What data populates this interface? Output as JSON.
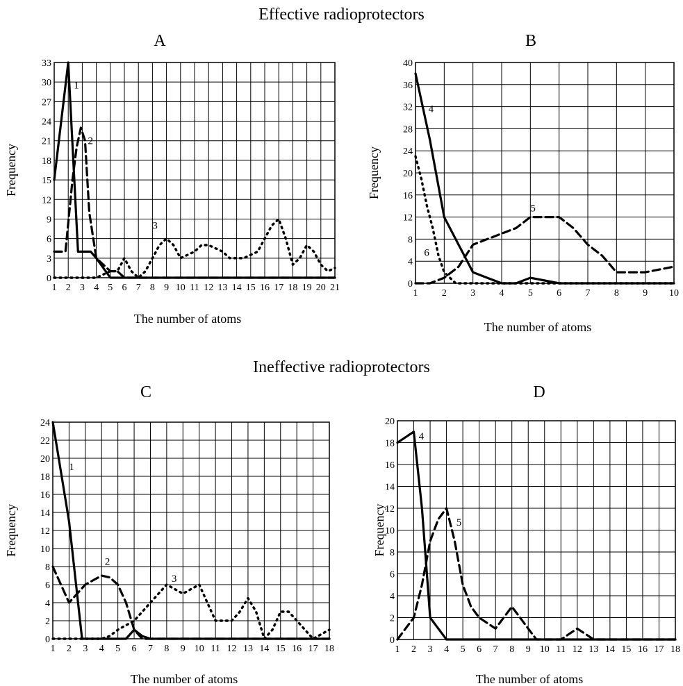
{
  "section_titles": {
    "effective": "Effective radioprotectors",
    "ineffective": "Ineffective  radioprotectors"
  },
  "chart_data": [
    {
      "panel": "A",
      "type": "line",
      "xlabel": "The number of atoms",
      "ylabel": "Frequency",
      "xlim": [
        1,
        21
      ],
      "ylim": [
        0,
        33
      ],
      "xticks": [
        1,
        2,
        3,
        4,
        5,
        6,
        7,
        8,
        9,
        10,
        11,
        12,
        13,
        14,
        15,
        16,
        17,
        18,
        19,
        20,
        21
      ],
      "yticks": [
        0,
        3,
        6,
        9,
        12,
        15,
        18,
        21,
        24,
        27,
        30,
        33
      ],
      "grid": true,
      "series": [
        {
          "name": "1",
          "style": "solid",
          "x": [
            1,
            2,
            2.7,
            3.6,
            4,
            5,
            6,
            7,
            8,
            9,
            10,
            11,
            12,
            13,
            14,
            15,
            16,
            17,
            18,
            19,
            20,
            21
          ],
          "y": [
            15,
            33,
            4,
            4,
            3,
            0,
            0,
            0,
            0,
            0,
            0,
            0,
            0,
            0,
            0,
            0,
            0,
            0,
            0,
            0,
            0,
            0
          ]
        },
        {
          "name": "2",
          "style": "dashed",
          "x": [
            1,
            1.8,
            2.3,
            2.6,
            2.9,
            3.2,
            3.5,
            4,
            4.5,
            5,
            5.5,
            6,
            6.5,
            7,
            8,
            9,
            10,
            11,
            12,
            13,
            14,
            15,
            16,
            17,
            18,
            19,
            20,
            21
          ],
          "y": [
            4,
            4,
            15,
            20,
            23,
            21,
            10,
            3,
            2,
            1,
            1,
            0,
            0,
            0,
            0,
            0,
            0,
            0,
            0,
            0,
            0,
            0,
            0,
            0,
            0,
            0,
            0,
            0
          ]
        },
        {
          "name": "3",
          "style": "dotted",
          "x": [
            1,
            2,
            3,
            4,
            5,
            5.5,
            6,
            6.5,
            7,
            7.5,
            8,
            8.5,
            9,
            9.5,
            10,
            10.5,
            11,
            11.5,
            12,
            12.5,
            13,
            13.5,
            14,
            14.5,
            15,
            15.5,
            16,
            16.5,
            17,
            17.5,
            18,
            18.5,
            19,
            19.5,
            20,
            20.5,
            21
          ],
          "y": [
            0,
            0,
            0,
            0,
            1,
            1,
            3,
            1,
            0,
            1,
            3,
            5,
            6,
            5,
            3,
            3.5,
            4,
            5,
            5,
            4.5,
            4,
            3,
            3,
            3,
            3.5,
            4,
            6,
            8,
            9,
            6,
            2,
            3,
            5,
            4,
            2,
            1,
            1.5
          ]
        }
      ]
    },
    {
      "panel": "B",
      "type": "line",
      "xlabel": "The number of atoms",
      "ylabel": "Frequency",
      "xlim": [
        1,
        10
      ],
      "ylim": [
        0,
        40
      ],
      "xticks": [
        1,
        2,
        3,
        4,
        5,
        6,
        7,
        8,
        9,
        10
      ],
      "yticks": [
        0,
        4,
        8,
        12,
        16,
        20,
        24,
        28,
        32,
        36,
        40
      ],
      "grid": true,
      "series": [
        {
          "name": "4",
          "style": "solid",
          "x": [
            1,
            1.5,
            2,
            2.5,
            3,
            3.5,
            4,
            4.5,
            5,
            5.5,
            6,
            7,
            8,
            9,
            10
          ],
          "y": [
            38,
            26,
            12,
            7,
            2,
            1,
            0,
            0,
            1,
            0.5,
            0,
            0,
            0,
            0,
            0
          ]
        },
        {
          "name": "5",
          "style": "dashed",
          "x": [
            1,
            1.5,
            2,
            2.5,
            3,
            3.5,
            4,
            4.5,
            5,
            5.5,
            6,
            6.5,
            7,
            7.5,
            8,
            8.5,
            9,
            9.5,
            10
          ],
          "y": [
            0,
            0,
            1,
            3,
            7,
            8,
            9,
            10,
            12,
            12,
            12,
            10,
            7,
            5,
            2,
            2,
            2,
            2.5,
            3
          ]
        },
        {
          "name": "6",
          "style": "dotted",
          "x": [
            1,
            1.2,
            1.4,
            1.6,
            1.8,
            2,
            2.2,
            2.4,
            3,
            4,
            5,
            6,
            7,
            8,
            9,
            10
          ],
          "y": [
            23,
            19,
            14,
            10,
            5,
            2,
            1,
            0,
            0,
            0,
            0,
            0,
            0,
            0,
            0,
            0
          ]
        }
      ]
    },
    {
      "panel": "C",
      "type": "line",
      "xlabel": "The number of atoms",
      "ylabel": "Frequency",
      "xlim": [
        1,
        18
      ],
      "ylim": [
        0,
        24
      ],
      "xticks": [
        1,
        2,
        3,
        4,
        5,
        6,
        7,
        8,
        9,
        10,
        11,
        12,
        13,
        14,
        15,
        16,
        17,
        18
      ],
      "yticks": [
        0,
        2,
        4,
        6,
        8,
        10,
        12,
        14,
        16,
        18,
        20,
        22,
        24
      ],
      "grid": true,
      "series": [
        {
          "name": "1",
          "style": "solid",
          "x": [
            1,
            2,
            2.8,
            3,
            4,
            5,
            5.5,
            6,
            6.5,
            7,
            8,
            9,
            10,
            11,
            12,
            13,
            14,
            15,
            16,
            17,
            18
          ],
          "y": [
            24,
            13,
            0,
            0,
            0,
            0,
            0,
            1,
            0.3,
            0,
            0,
            0,
            0,
            0,
            0,
            0,
            0,
            0,
            0,
            0,
            0
          ]
        },
        {
          "name": "2",
          "style": "dashed",
          "x": [
            1,
            1.5,
            2,
            2.5,
            3,
            3.5,
            4,
            4.5,
            5,
            5.5,
            6,
            6.5,
            7,
            8,
            9,
            10,
            11,
            12,
            13,
            14,
            15,
            16,
            17,
            18
          ],
          "y": [
            8,
            6,
            4,
            5,
            6,
            6.5,
            7,
            6.8,
            6,
            4,
            1,
            0,
            0,
            0,
            0,
            0,
            0,
            0,
            0,
            0,
            0,
            0,
            0,
            0
          ]
        },
        {
          "name": "3",
          "style": "dotted",
          "x": [
            1,
            2,
            3,
            4,
            4.5,
            5,
            5.5,
            6,
            6.5,
            7,
            7.5,
            8,
            8.5,
            9,
            9.5,
            10,
            10.5,
            11,
            11.5,
            12,
            12.5,
            13,
            13.5,
            14,
            14.5,
            15,
            15.5,
            16,
            16.5,
            17,
            17.5,
            18
          ],
          "y": [
            0,
            0,
            0,
            0,
            0.3,
            1,
            1.5,
            2,
            3,
            4,
            5,
            6,
            5.5,
            5,
            5.5,
            6,
            4,
            2,
            2,
            2,
            3,
            4.5,
            3,
            0,
            1,
            3,
            3,
            2,
            1,
            0,
            0.5,
            1
          ]
        }
      ]
    },
    {
      "panel": "D",
      "type": "line",
      "xlabel": "The number of atoms",
      "ylabel": "Frequency",
      "xlim": [
        1,
        18
      ],
      "ylim": [
        0,
        20
      ],
      "xticks": [
        1,
        2,
        3,
        4,
        5,
        6,
        7,
        8,
        9,
        10,
        11,
        12,
        13,
        14,
        15,
        16,
        17,
        18
      ],
      "yticks": [
        0,
        2,
        4,
        6,
        8,
        10,
        12,
        14,
        16,
        18,
        20
      ],
      "grid": true,
      "series": [
        {
          "name": "4",
          "style": "solid",
          "x": [
            1,
            2,
            2.5,
            2.8,
            3,
            3.5,
            4,
            5,
            6,
            7,
            8,
            9,
            10,
            11,
            12,
            13,
            14,
            15,
            16,
            17,
            18
          ],
          "y": [
            18,
            19,
            12,
            6,
            2,
            1,
            0,
            0,
            0,
            0,
            0,
            0,
            0,
            0,
            0,
            0,
            0,
            0,
            0,
            0,
            0
          ]
        },
        {
          "name": "5",
          "style": "dashed",
          "x": [
            1,
            2,
            2.5,
            3,
            3.5,
            4,
            4.5,
            5,
            5.5,
            6,
            6.5,
            7,
            7.5,
            8,
            8.5,
            9,
            9.5,
            10,
            10.5,
            11,
            11.5,
            12,
            12.5,
            13,
            14,
            15,
            16,
            17,
            18
          ],
          "y": [
            0,
            2,
            5,
            9,
            11,
            12,
            9,
            5,
            3,
            2,
            1.5,
            1,
            2,
            3,
            2,
            1,
            0,
            0,
            0,
            0,
            0.5,
            1,
            0.5,
            0,
            0,
            0,
            0,
            0,
            0
          ]
        }
      ]
    }
  ]
}
